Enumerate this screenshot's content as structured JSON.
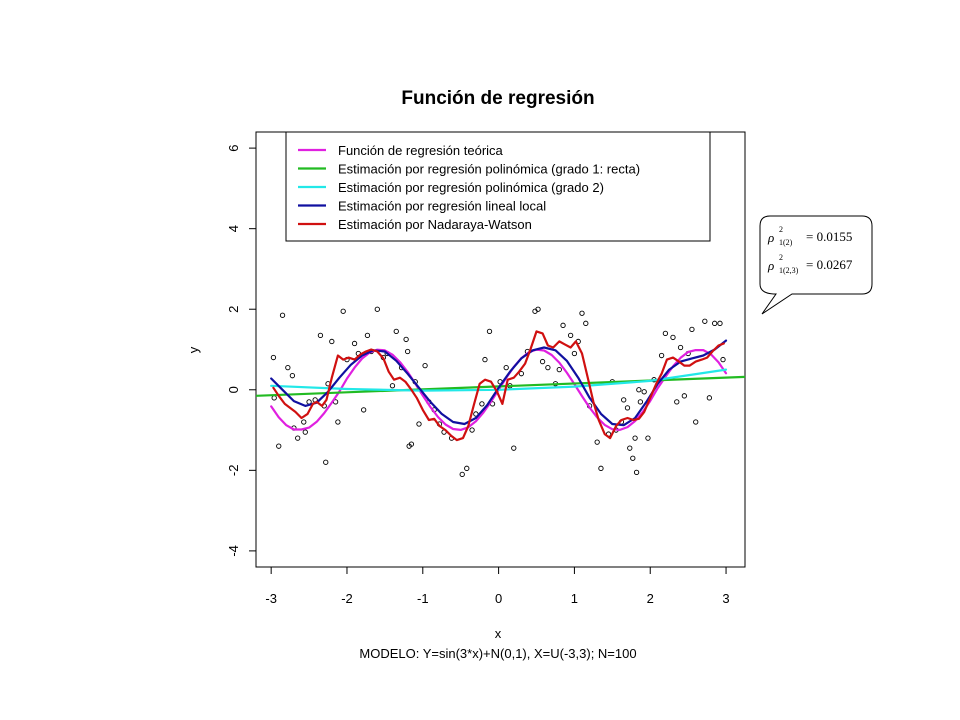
{
  "chart_data": {
    "type": "scatter",
    "title": "Función de regresión",
    "xlabel": "x",
    "ylabel": "y",
    "subtitle": "MODELO: Y=sin(3*x)+N(0,1), X=U(-3,3);  N=100",
    "xlim": [
      -3.2,
      3.25
    ],
    "ylim": [
      -4.4,
      6.4
    ],
    "xticks": [
      -3,
      -2,
      -1,
      0,
      1,
      2,
      3
    ],
    "xtick_labels": [
      "-3",
      "-2",
      "-1",
      "0",
      "1",
      "2",
      "3"
    ],
    "yticks": [
      -4,
      -2,
      0,
      2,
      4,
      6
    ],
    "ytick_labels": [
      "-4",
      "-2",
      "0",
      "2",
      "4",
      "6"
    ],
    "grid": false,
    "legend_position": "top",
    "legend": [
      {
        "label": "Función de regresión teórica",
        "color": "#e020e0"
      },
      {
        "label": "Estimación por regresión polinómica (grado 1: recta)",
        "color": "#22bb22"
      },
      {
        "label": "Estimación por regresión polinómica (grado 2)",
        "color": "#22e8e8"
      },
      {
        "label": "Estimación por regresión lineal local",
        "color": "#1010a0"
      },
      {
        "label": "Estimación por Nadaraya-Watson",
        "color": "#d01010"
      }
    ],
    "points": [
      [
        -2.97,
        0.8
      ],
      [
        -2.96,
        -0.2
      ],
      [
        -2.9,
        -1.4
      ],
      [
        -2.85,
        1.85
      ],
      [
        -2.78,
        0.55
      ],
      [
        -2.72,
        0.35
      ],
      [
        -2.7,
        -0.95
      ],
      [
        -2.65,
        -1.2
      ],
      [
        -2.57,
        -0.8
      ],
      [
        -2.55,
        -1.05
      ],
      [
        -2.5,
        -0.3
      ],
      [
        -2.42,
        -0.25
      ],
      [
        -2.35,
        1.35
      ],
      [
        -2.3,
        -0.4
      ],
      [
        -2.28,
        -1.8
      ],
      [
        -2.25,
        0.15
      ],
      [
        -2.2,
        1.2
      ],
      [
        -2.15,
        -0.3
      ],
      [
        -2.12,
        -0.8
      ],
      [
        -2.05,
        1.95
      ],
      [
        -2.0,
        0.75
      ],
      [
        -1.9,
        1.15
      ],
      [
        -1.85,
        0.9
      ],
      [
        -1.78,
        -0.5
      ],
      [
        -1.73,
        1.35
      ],
      [
        -1.68,
        0.95
      ],
      [
        -1.6,
        2.0
      ],
      [
        -1.52,
        0.8
      ],
      [
        -1.47,
        0.9
      ],
      [
        -1.4,
        0.1
      ],
      [
        -1.35,
        1.45
      ],
      [
        -1.28,
        0.55
      ],
      [
        -1.22,
        1.25
      ],
      [
        -1.2,
        0.95
      ],
      [
        -1.18,
        -1.4
      ],
      [
        -1.15,
        -1.35
      ],
      [
        -1.1,
        0.2
      ],
      [
        -1.05,
        -0.85
      ],
      [
        -0.97,
        0.6
      ],
      [
        -0.92,
        -0.3
      ],
      [
        -0.85,
        -0.5
      ],
      [
        -0.78,
        -0.85
      ],
      [
        -0.72,
        -1.05
      ],
      [
        -0.62,
        -1.2
      ],
      [
        -0.48,
        -2.1
      ],
      [
        -0.42,
        -1.95
      ],
      [
        -0.35,
        -1.0
      ],
      [
        -0.3,
        -0.6
      ],
      [
        -0.22,
        -0.35
      ],
      [
        -0.18,
        0.75
      ],
      [
        -0.12,
        1.45
      ],
      [
        -0.08,
        -0.35
      ],
      [
        0.02,
        0.2
      ],
      [
        0.1,
        0.55
      ],
      [
        0.15,
        0.1
      ],
      [
        0.2,
        -1.45
      ],
      [
        0.3,
        0.4
      ],
      [
        0.38,
        0.95
      ],
      [
        0.48,
        1.95
      ],
      [
        0.52,
        2.0
      ],
      [
        0.58,
        0.7
      ],
      [
        0.65,
        0.55
      ],
      [
        0.75,
        0.15
      ],
      [
        0.8,
        0.5
      ],
      [
        0.85,
        1.6
      ],
      [
        0.95,
        1.35
      ],
      [
        1.0,
        0.9
      ],
      [
        1.05,
        1.2
      ],
      [
        1.1,
        1.9
      ],
      [
        1.15,
        1.65
      ],
      [
        1.2,
        -0.4
      ],
      [
        1.3,
        -1.3
      ],
      [
        1.35,
        -1.95
      ],
      [
        1.45,
        -1.1
      ],
      [
        1.5,
        0.2
      ],
      [
        1.55,
        -1.0
      ],
      [
        1.62,
        -0.8
      ],
      [
        1.65,
        -0.25
      ],
      [
        1.7,
        -0.45
      ],
      [
        1.73,
        -1.45
      ],
      [
        1.77,
        -1.7
      ],
      [
        1.8,
        -1.2
      ],
      [
        1.82,
        -2.05
      ],
      [
        1.85,
        0.0
      ],
      [
        1.87,
        -0.3
      ],
      [
        1.92,
        -0.05
      ],
      [
        1.97,
        -1.2
      ],
      [
        2.05,
        0.25
      ],
      [
        2.15,
        0.85
      ],
      [
        2.2,
        1.4
      ],
      [
        2.3,
        1.3
      ],
      [
        2.35,
        -0.3
      ],
      [
        2.4,
        1.05
      ],
      [
        2.45,
        -0.15
      ],
      [
        2.5,
        0.9
      ],
      [
        2.55,
        1.5
      ],
      [
        2.6,
        -0.8
      ],
      [
        2.72,
        1.7
      ],
      [
        2.78,
        -0.2
      ],
      [
        2.85,
        1.65
      ],
      [
        2.92,
        1.65
      ],
      [
        2.96,
        0.75
      ]
    ],
    "series": [
      {
        "name": "Función de regresión teórica",
        "color": "#e020e0",
        "x": [
          -3.0,
          -2.9,
          -2.8,
          -2.7,
          -2.6,
          -2.5,
          -2.4,
          -2.3,
          -2.2,
          -2.1,
          -2.0,
          -1.9,
          -1.8,
          -1.7,
          -1.6,
          -1.5,
          -1.4,
          -1.3,
          -1.2,
          -1.1,
          -1.0,
          -0.9,
          -0.8,
          -0.7,
          -0.6,
          -0.5,
          -0.4,
          -0.3,
          -0.2,
          -0.1,
          0.0,
          0.1,
          0.2,
          0.3,
          0.4,
          0.5,
          0.6,
          0.7,
          0.8,
          0.9,
          1.0,
          1.1,
          1.2,
          1.3,
          1.4,
          1.5,
          1.6,
          1.7,
          1.8,
          1.9,
          2.0,
          2.1,
          2.2,
          2.3,
          2.4,
          2.5,
          2.6,
          2.7,
          2.8,
          2.9,
          3.0
        ],
        "y": [
          -0.412,
          -0.681,
          -0.88,
          -0.985,
          -0.985,
          -0.938,
          -0.794,
          -0.58,
          -0.319,
          -0.044,
          0.279,
          0.551,
          0.776,
          0.926,
          0.996,
          0.978,
          0.872,
          0.688,
          0.443,
          0.158,
          -0.141,
          -0.427,
          -0.675,
          -0.863,
          -0.974,
          -0.997,
          -0.932,
          -0.783,
          -0.565,
          -0.296,
          0.0,
          0.296,
          0.565,
          0.783,
          0.932,
          0.997,
          0.974,
          0.863,
          0.675,
          0.427,
          0.141,
          -0.158,
          -0.443,
          -0.688,
          -0.872,
          -0.978,
          -0.996,
          -0.926,
          -0.776,
          -0.551,
          -0.279,
          0.044,
          0.319,
          0.58,
          0.794,
          0.938,
          0.985,
          0.985,
          0.88,
          0.681,
          0.412
        ]
      },
      {
        "name": "Estimación por regresión polinómica (grado 1: recta)",
        "color": "#22bb22",
        "x": [
          -3.2,
          3.25
        ],
        "y": [
          -0.15,
          0.32
        ]
      },
      {
        "name": "Estimación por regresión polinómica (grado 2)",
        "color": "#22e8e8",
        "x": [
          -3.0,
          -2.0,
          -1.0,
          0.0,
          1.0,
          2.0,
          3.0
        ],
        "y": [
          0.1,
          0.02,
          -0.02,
          0.0,
          0.08,
          0.22,
          0.5
        ]
      },
      {
        "name": "Estimación por regresión lineal local",
        "color": "#1010a0",
        "x": [
          -3.0,
          -2.85,
          -2.7,
          -2.55,
          -2.4,
          -2.25,
          -2.1,
          -1.95,
          -1.8,
          -1.65,
          -1.5,
          -1.35,
          -1.2,
          -1.05,
          -0.9,
          -0.75,
          -0.6,
          -0.45,
          -0.3,
          -0.15,
          0.0,
          0.15,
          0.3,
          0.45,
          0.6,
          0.75,
          0.9,
          1.05,
          1.2,
          1.35,
          1.5,
          1.65,
          1.8,
          1.95,
          2.1,
          2.25,
          2.4,
          2.55,
          2.7,
          2.85,
          3.0
        ],
        "y": [
          0.28,
          0.0,
          -0.28,
          -0.4,
          -0.32,
          -0.05,
          0.3,
          0.62,
          0.85,
          0.98,
          0.95,
          0.72,
          0.4,
          0.05,
          -0.3,
          -0.6,
          -0.8,
          -0.85,
          -0.7,
          -0.38,
          0.05,
          0.45,
          0.78,
          0.98,
          1.05,
          0.98,
          0.72,
          0.3,
          -0.2,
          -0.6,
          -0.85,
          -0.88,
          -0.7,
          -0.3,
          0.15,
          0.5,
          0.7,
          0.78,
          0.85,
          1.0,
          1.22
        ]
      },
      {
        "name": "Estimación por Nadaraya-Watson",
        "color": "#d01010",
        "x": [
          -2.97,
          -2.9,
          -2.82,
          -2.75,
          -2.68,
          -2.6,
          -2.52,
          -2.45,
          -2.4,
          -2.33,
          -2.27,
          -2.2,
          -2.12,
          -2.05,
          -1.98,
          -1.9,
          -1.82,
          -1.75,
          -1.68,
          -1.6,
          -1.52,
          -1.45,
          -1.38,
          -1.3,
          -1.23,
          -1.15,
          -1.08,
          -1.0,
          -0.92,
          -0.85,
          -0.78,
          -0.7,
          -0.62,
          -0.55,
          -0.47,
          -0.4,
          -0.33,
          -0.25,
          -0.18,
          -0.1,
          -0.02,
          0.05,
          0.12,
          0.2,
          0.27,
          0.35,
          0.42,
          0.5,
          0.58,
          0.65,
          0.72,
          0.8,
          0.88,
          0.95,
          1.02,
          1.1,
          1.17,
          1.25,
          1.32,
          1.4,
          1.47,
          1.55,
          1.62,
          1.7,
          1.78,
          1.85,
          1.92,
          2.0,
          2.08,
          2.15,
          2.22,
          2.3,
          2.38,
          2.45,
          2.52,
          2.6,
          2.68,
          2.75,
          2.82,
          2.9,
          2.97
        ],
        "y": [
          0.05,
          -0.15,
          -0.35,
          -0.45,
          -0.55,
          -0.7,
          -0.6,
          -0.35,
          -0.3,
          -0.4,
          -0.25,
          0.3,
          0.85,
          0.75,
          0.8,
          0.75,
          0.88,
          0.95,
          1.0,
          0.95,
          0.78,
          0.45,
          0.25,
          0.3,
          0.2,
          0.0,
          -0.2,
          -0.5,
          -0.75,
          -0.72,
          -0.9,
          -1.0,
          -1.15,
          -1.25,
          -1.2,
          -0.9,
          -0.4,
          0.15,
          0.25,
          0.2,
          -0.05,
          -0.35,
          0.25,
          0.3,
          0.45,
          0.65,
          1.0,
          1.45,
          1.4,
          1.1,
          1.05,
          1.2,
          1.12,
          1.05,
          1.2,
          0.9,
          0.35,
          -0.3,
          -0.75,
          -1.1,
          -1.2,
          -0.9,
          -0.75,
          -0.7,
          -0.75,
          -0.72,
          -0.55,
          -0.2,
          0.15,
          0.4,
          0.75,
          0.8,
          0.7,
          0.6,
          0.6,
          0.7,
          0.75,
          0.8,
          0.95,
          1.1,
          1.15
        ]
      }
    ]
  },
  "callout": {
    "row1": {
      "symbol": "ρ",
      "sup": "2",
      "sub": "1(2)",
      "value": "= 0.0155"
    },
    "row2": {
      "symbol": "ρ",
      "sup": "2",
      "sub": "1(2,3)",
      "value": "= 0.0267"
    }
  }
}
